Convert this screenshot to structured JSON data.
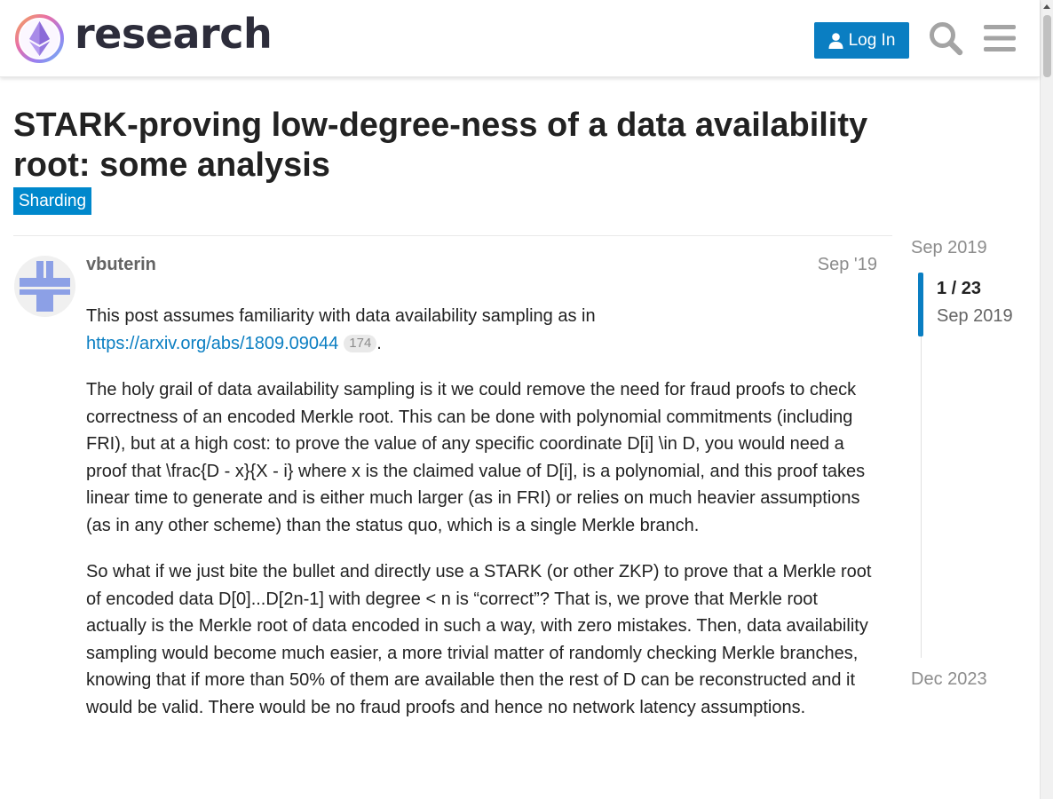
{
  "header": {
    "site_name": "research",
    "login_label": "Log In"
  },
  "topic": {
    "title": "STARK-proving low-degree-ness of a data availability root: some analysis",
    "category": "Sharding"
  },
  "post": {
    "author": "vbuterin",
    "date": "Sep '19",
    "p1_text": "This post assumes familiarity with data availability sampling as in",
    "p1_link": "https://arxiv.org/abs/1809.09044",
    "p1_link_clicks": "174",
    "p1_end": ".",
    "p2": "The holy grail of data availability sampling is it we could remove the need for fraud proofs to check correctness of an encoded Merkle root. This can be done with polynomial commitments (including FRI), but at a high cost: to prove the value of any specific coordinate D[i] \\in D, you would need a proof that \\frac{D - x}{X - i} where x is the claimed value of D[i], is a polynomial, and this proof takes linear time to generate and is either much larger (as in FRI) or relies on much heavier assumptions (as in any other scheme) than the status quo, which is a single Merkle branch.",
    "p3": "So what if we just bite the bullet and directly use a STARK (or other ZKP) to prove that a Merkle root of encoded data D[0]...D[2n-1] with degree < n is “correct”? That is, we prove that Merkle root actually is the Merkle root of data encoded in such a way, with zero mistakes. Then, data availability sampling would become much easier, a more trivial matter of randomly checking Merkle branches, knowing that if more than 50% of them are available then the rest of D can be reconstructed and it would be valid. There would be no fraud proofs and hence no network latency assumptions."
  },
  "timeline": {
    "start_date": "Sep 2019",
    "position": "1 / 23",
    "position_date": "Sep 2019",
    "end_date": "Dec 2023"
  },
  "colors": {
    "primary": "#0a7ec2",
    "category": "#0088cc",
    "avatar": "#8ca0e6"
  }
}
